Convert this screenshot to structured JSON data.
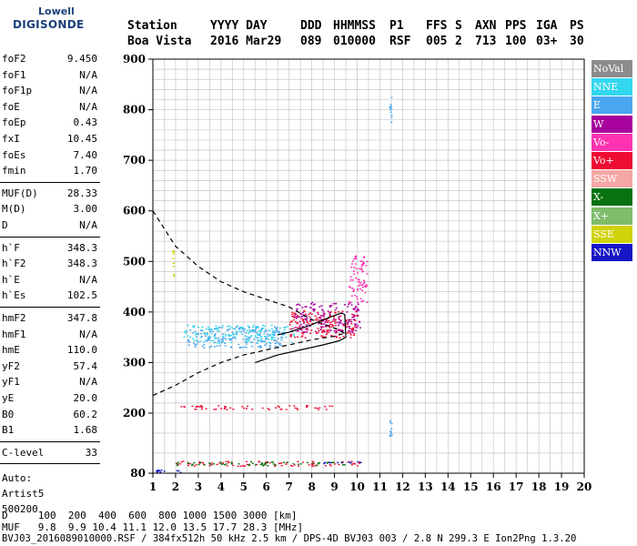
{
  "logo": {
    "line1": "Lowell",
    "line2": "DIGISONDE"
  },
  "header": {
    "row1": [
      "Station",
      "YYYY DAY",
      "DDD",
      "HHMMSS",
      "P1",
      "FFS",
      "S",
      "AXN",
      "PPS",
      "IGA",
      "PS"
    ],
    "row2": [
      "Boa Vista",
      "2016 Mar29",
      "089",
      "010000",
      "RSF",
      "005",
      "2",
      "713",
      "100",
      "03+",
      "30"
    ]
  },
  "params": {
    "group1": [
      [
        "foF2",
        "9.450"
      ],
      [
        "foF1",
        "N/A"
      ],
      [
        "foF1p",
        "N/A"
      ],
      [
        "foE",
        "N/A"
      ],
      [
        "foEp",
        "0.43"
      ],
      [
        "fxI",
        "10.45"
      ],
      [
        "foEs",
        "7.40"
      ],
      [
        "fmin",
        "1.70"
      ]
    ],
    "group2": [
      [
        "MUF(D)",
        "28.33"
      ],
      [
        "M(D)",
        "3.00"
      ],
      [
        "D",
        "N/A"
      ]
    ],
    "group3": [
      [
        "h`F",
        "348.3"
      ],
      [
        "h`F2",
        "348.3"
      ],
      [
        "h`E",
        "N/A"
      ],
      [
        "h`Es",
        "102.5"
      ]
    ],
    "group4": [
      [
        "hmF2",
        "347.8"
      ],
      [
        "hmF1",
        "N/A"
      ],
      [
        "hmE",
        "110.0"
      ],
      [
        "yF2",
        "57.4"
      ],
      [
        "yF1",
        "N/A"
      ],
      [
        "yE",
        "20.0"
      ],
      [
        "B0",
        "60.2"
      ],
      [
        "B1",
        "1.68"
      ]
    ],
    "group5": [
      [
        "C-level",
        "33"
      ]
    ],
    "auto": [
      "Auto:",
      "Artist5",
      "500200"
    ]
  },
  "legend": [
    {
      "label": "NoVal",
      "color": "#8c8c8c"
    },
    {
      "label": "NNE",
      "color": "#33d7ee"
    },
    {
      "label": "E",
      "color": "#4aa6ee"
    },
    {
      "label": "W",
      "color": "#a8029e"
    },
    {
      "label": "Vo-",
      "color": "#ff33b2"
    },
    {
      "label": "Vo+",
      "color": "#ee0c33"
    },
    {
      "label": "SSW",
      "color": "#f4a7a4"
    },
    {
      "label": "X-",
      "color": "#07720f"
    },
    {
      "label": "X+",
      "color": "#7fbd6c"
    },
    {
      "label": "SSE",
      "color": "#d0d20b"
    },
    {
      "label": "NNW",
      "color": "#1716c6"
    }
  ],
  "footer": {
    "d_row": "D     100  200  400  600  800 1000 1500 3000 [km]",
    "muf_row": "MUF   9.8  9.9 10.4 11.1 12.0 13.5 17.7 28.3 [MHz]",
    "file_row": "BVJ03_2016089010000.RSF / 384fx512h 50 kHz 2.5 km / DPS-4D BVJ03 003 / 2.8 N 299.3 E Ion2Png 1.3.20"
  },
  "chart_data": {
    "type": "scatter",
    "x_ticks": [
      1,
      2,
      3,
      4,
      5,
      6,
      7,
      8,
      9,
      10,
      11,
      12,
      13,
      14,
      15,
      16,
      17,
      18,
      19,
      20
    ],
    "y_ticks": [
      80,
      200,
      300,
      400,
      500,
      600,
      700,
      800,
      900
    ],
    "ylim": [
      80,
      900
    ],
    "xlim": [
      1,
      20
    ],
    "y_scale": "piecewise (80-200 compressed, 200-900 linear)",
    "grid": true,
    "echo_clusters": [
      {
        "series": "NNE",
        "x": [
          2.3,
          7.2
        ],
        "y": [
          340,
          375
        ]
      },
      {
        "series": "E",
        "x": [
          2.5,
          6.8
        ],
        "y": [
          330,
          372
        ]
      },
      {
        "series": "Vo+",
        "x": [
          7.0,
          10.0
        ],
        "y": [
          350,
          405
        ]
      },
      {
        "series": "W",
        "x": [
          7.2,
          10.1
        ],
        "y": [
          360,
          420
        ]
      },
      {
        "series": "Vo-",
        "x": [
          9.6,
          10.4
        ],
        "y": [
          420,
          520
        ]
      },
      {
        "series": "Vo+",
        "x": [
          1.9,
          9.0
        ],
        "y": [
          208,
          216
        ]
      },
      {
        "series": "Vo+",
        "x": [
          1.9,
          10.3
        ],
        "y": [
          95,
          105
        ]
      },
      {
        "series": "X-",
        "x": [
          1.9,
          9.5
        ],
        "y": [
          96,
          104
        ]
      },
      {
        "series": "NNW",
        "x": [
          1.1,
          2.2
        ],
        "y": [
          82,
          88
        ]
      },
      {
        "series": "NNW",
        "x": [
          8.5,
          10.3
        ],
        "y": [
          100,
          104
        ]
      },
      {
        "series": "E",
        "x": [
          11.4,
          11.5
        ],
        "y": [
          760,
          835
        ]
      },
      {
        "series": "E",
        "x": [
          11.4,
          11.5
        ],
        "y": [
          150,
          210
        ]
      },
      {
        "series": "SSE",
        "x": [
          1.85,
          1.9
        ],
        "y": [
          470,
          530
        ]
      }
    ],
    "dashed_profile": [
      [
        1,
        600
      ],
      [
        2,
        530
      ],
      [
        3,
        490
      ],
      [
        4,
        460
      ],
      [
        5,
        440
      ],
      [
        6,
        425
      ],
      [
        7,
        410
      ],
      [
        8,
        385
      ],
      [
        9,
        368
      ],
      [
        9.45,
        358
      ]
    ],
    "dashed_bottomside": [
      [
        1,
        235
      ],
      [
        2,
        255
      ],
      [
        3,
        280
      ],
      [
        4,
        300
      ],
      [
        5,
        315
      ],
      [
        6,
        325
      ],
      [
        7,
        335
      ],
      [
        8,
        345
      ],
      [
        9,
        352
      ],
      [
        9.45,
        358
      ]
    ],
    "solid_trace": [
      [
        6.5,
        355
      ],
      [
        7,
        360
      ],
      [
        8,
        375
      ],
      [
        8.8,
        390
      ],
      [
        9.3,
        398
      ],
      [
        9.45,
        395
      ],
      [
        9.5,
        350
      ],
      [
        9.2,
        343
      ],
      [
        8.5,
        335
      ],
      [
        7.5,
        325
      ],
      [
        6.5,
        315
      ],
      [
        5.5,
        300
      ]
    ]
  }
}
